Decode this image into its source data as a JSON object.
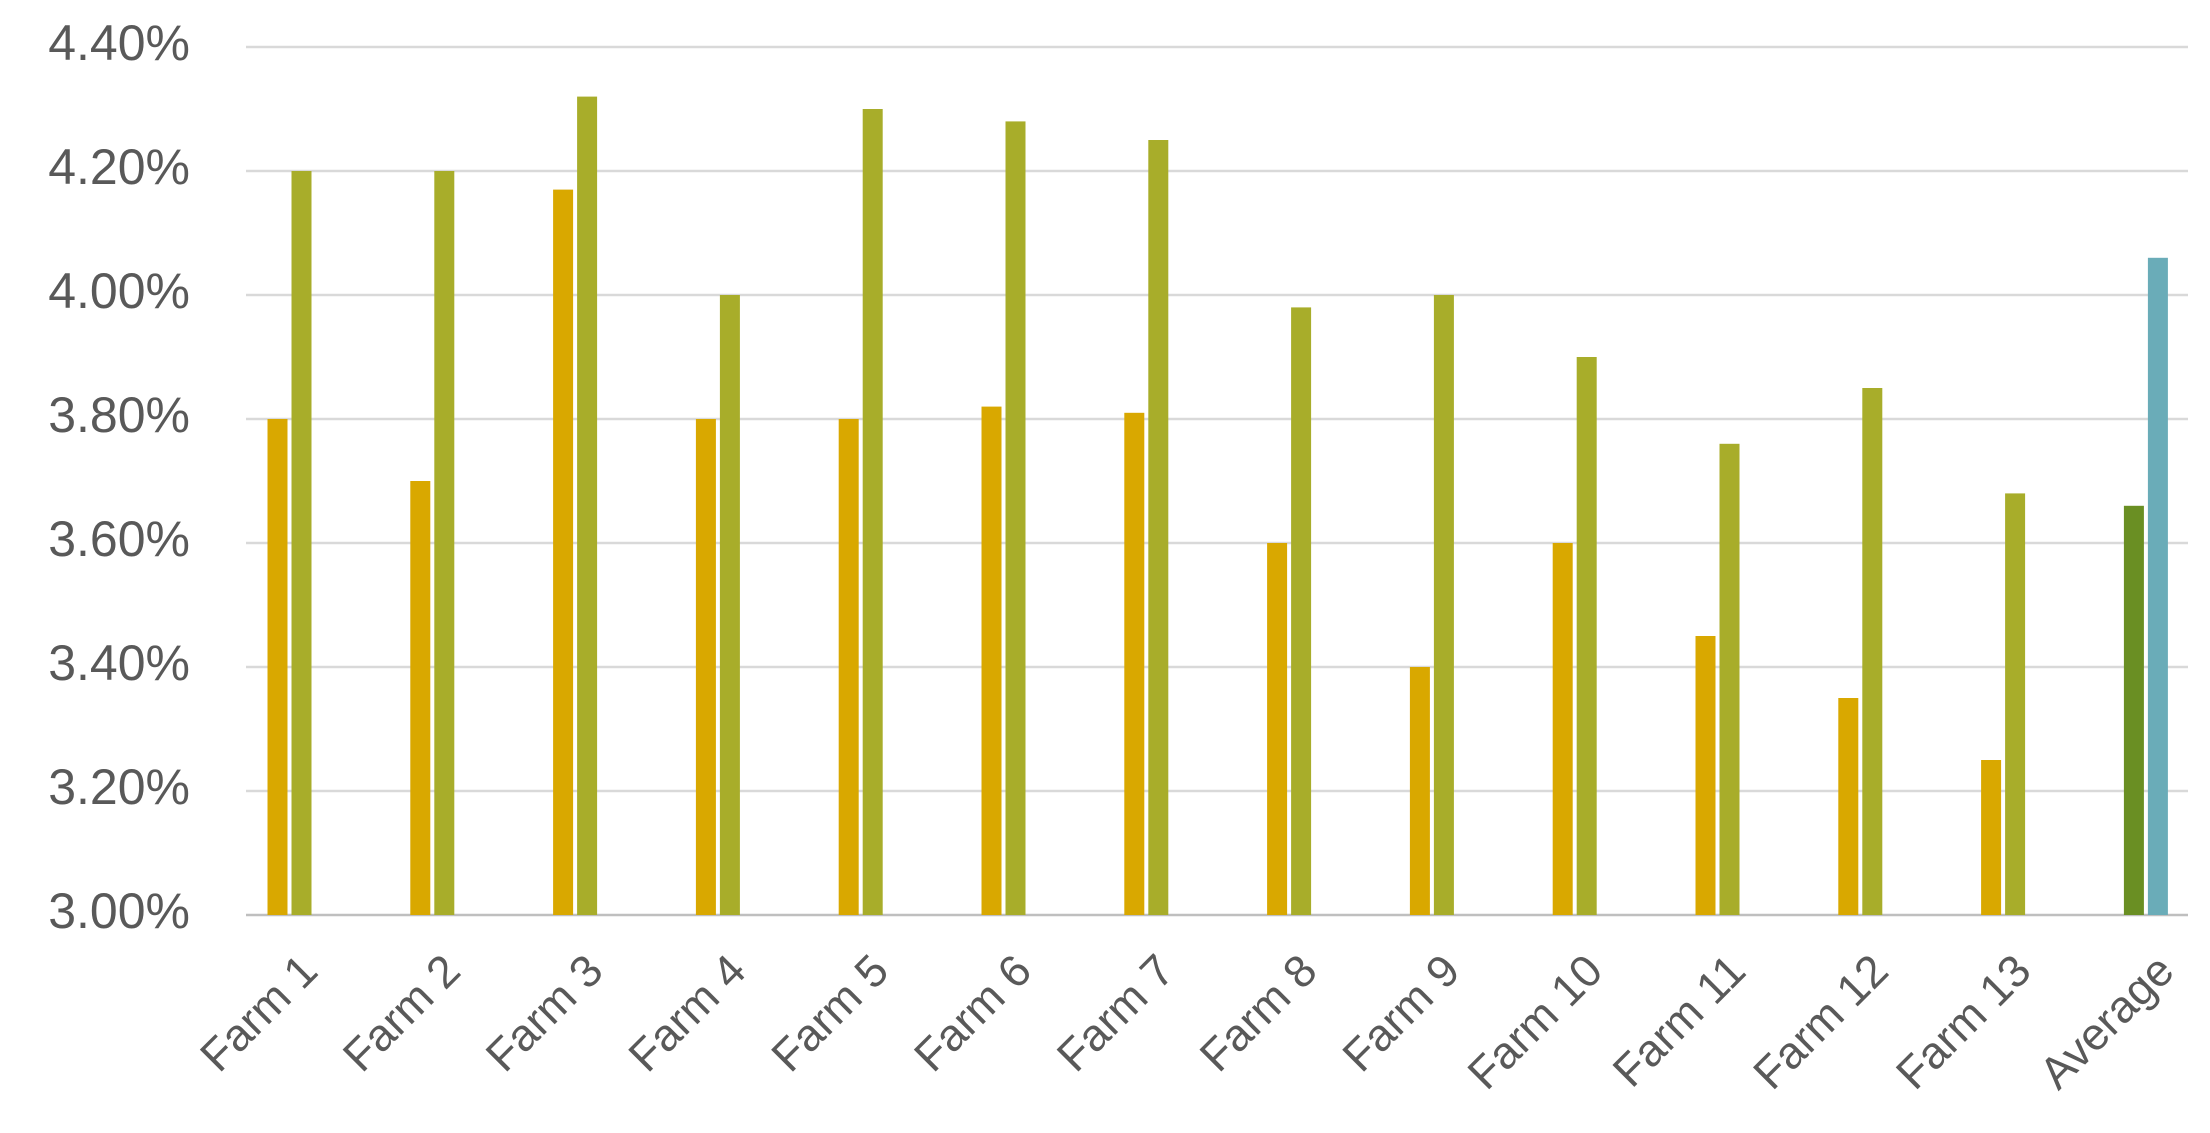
{
  "chart_data": {
    "type": "bar",
    "categories": [
      "Farm 1",
      "Farm 2",
      "Farm 3",
      "Farm 4",
      "Farm 5",
      "Farm 6",
      "Farm 7",
      "Farm 8",
      "Farm 9",
      "Farm 10",
      "Farm 11",
      "Farm 12",
      "Farm 13",
      "Average"
    ],
    "series": [
      {
        "color": "#d9a800",
        "colors": [
          "#d9a800",
          "#d9a800",
          "#d9a800",
          "#d9a800",
          "#d9a800",
          "#d9a800",
          "#d9a800",
          "#d9a800",
          "#d9a800",
          "#d9a800",
          "#d9a800",
          "#d9a800",
          "#d9a800",
          "#6a8f23"
        ],
        "values": [
          3.8,
          3.7,
          4.17,
          3.8,
          3.8,
          3.82,
          3.81,
          3.6,
          3.4,
          3.6,
          3.45,
          3.35,
          3.25,
          3.66
        ]
      },
      {
        "color": "#a8ad2a",
        "colors": [
          "#a8ad2a",
          "#a8ad2a",
          "#a8ad2a",
          "#a8ad2a",
          "#a8ad2a",
          "#a8ad2a",
          "#a8ad2a",
          "#a8ad2a",
          "#a8ad2a",
          "#a8ad2a",
          "#a8ad2a",
          "#a8ad2a",
          "#a8ad2a",
          "#6aacb8"
        ],
        "values": [
          4.2,
          4.2,
          4.32,
          4.0,
          4.3,
          4.28,
          4.25,
          3.98,
          4.0,
          3.9,
          3.76,
          3.85,
          3.68,
          4.06
        ]
      }
    ],
    "ylim": [
      3.0,
      4.4
    ],
    "yticks": [
      {
        "value": 3.0,
        "label": "3.00%"
      },
      {
        "value": 3.2,
        "label": "3.20%"
      },
      {
        "value": 3.4,
        "label": "3.40%"
      },
      {
        "value": 3.6,
        "label": "3.60%"
      },
      {
        "value": 3.8,
        "label": "3.80%"
      },
      {
        "value": 4.0,
        "label": "4.00%"
      },
      {
        "value": 4.2,
        "label": "4.20%"
      },
      {
        "value": 4.4,
        "label": "4.40%"
      }
    ],
    "grid": true
  }
}
